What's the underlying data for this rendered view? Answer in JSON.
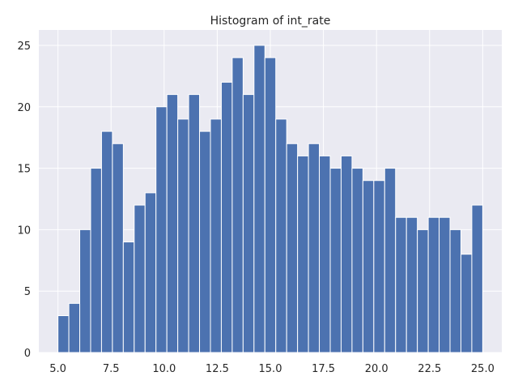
{
  "chart_data": {
    "type": "bar",
    "title": "Histogram of int_rate",
    "xlabel": "",
    "ylabel": "",
    "bin_start": 5.0,
    "bin_end": 25.0,
    "counts": [
      3,
      4,
      10,
      15,
      18,
      17,
      9,
      12,
      13,
      20,
      21,
      19,
      21,
      18,
      19,
      22,
      24,
      21,
      25,
      24,
      19,
      17,
      16,
      17,
      16,
      15,
      16,
      15,
      14,
      14,
      15,
      11,
      11,
      10,
      11,
      11,
      10,
      8,
      12
    ],
    "xlim": [
      4.1,
      25.9
    ],
    "ylim": [
      0,
      26.25
    ],
    "x_ticks": [
      5.0,
      7.5,
      10.0,
      12.5,
      15.0,
      17.5,
      20.0,
      22.5,
      25.0
    ],
    "x_tick_labels": [
      "5.0",
      "7.5",
      "10.0",
      "12.5",
      "15.0",
      "17.5",
      "20.0",
      "22.5",
      "25.0"
    ],
    "y_ticks": [
      0,
      5,
      10,
      15,
      20,
      25
    ],
    "y_tick_labels": [
      "0",
      "5",
      "10",
      "15",
      "20",
      "25"
    ],
    "grid": true,
    "colors": {
      "bar": "#4c72b0",
      "background": "#eaeaf2",
      "grid": "#ffffff"
    }
  }
}
